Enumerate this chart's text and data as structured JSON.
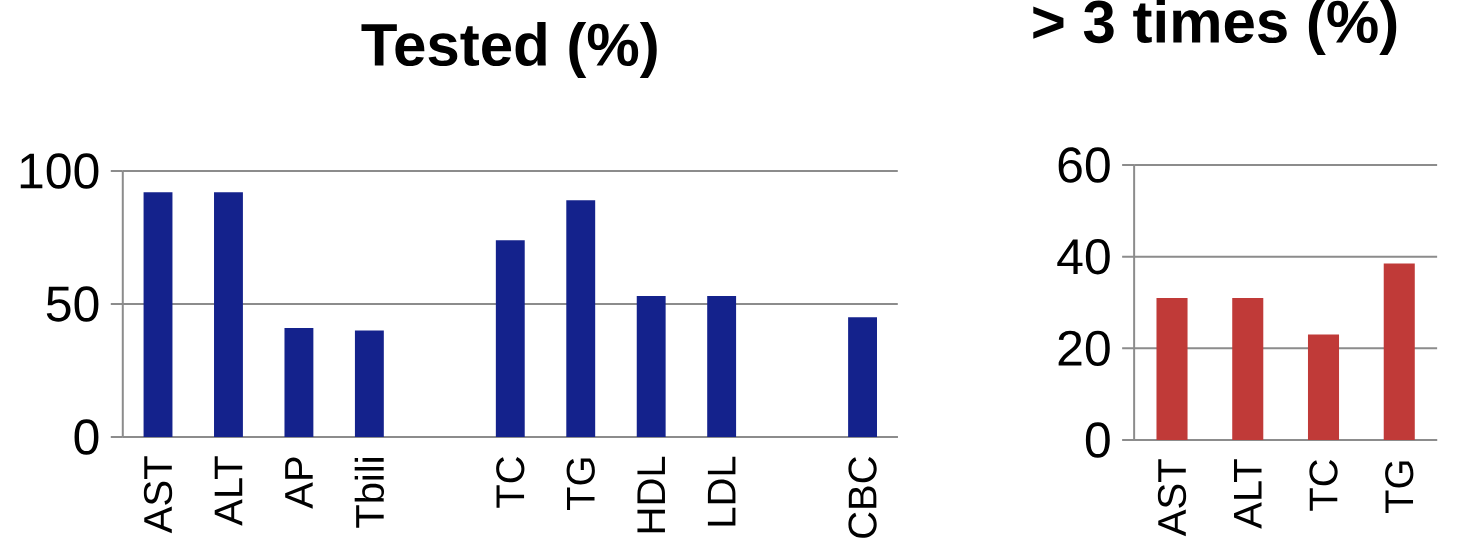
{
  "chart_data": [
    {
      "type": "bar",
      "title": "Tested (%)",
      "categories": [
        "AST",
        "ALT",
        "AP",
        "Tbili",
        null,
        "TC",
        "TG",
        "HDL",
        "LDL",
        null,
        "CBC"
      ],
      "values": [
        92,
        92,
        41,
        40,
        null,
        74,
        89,
        53,
        53,
        null,
        45
      ],
      "color": "#14228c",
      "ylim": [
        0,
        100
      ],
      "yticks": [
        0,
        50,
        100
      ],
      "grid": "y"
    },
    {
      "type": "bar",
      "title": "> 3 times (%)",
      "categories": [
        "AST",
        "ALT",
        "TC",
        "TG"
      ],
      "values": [
        31,
        31,
        23,
        38.5
      ],
      "color": "#c03a38",
      "ylim": [
        0,
        60
      ],
      "yticks": [
        0,
        20,
        40,
        60
      ],
      "grid": "y"
    }
  ]
}
